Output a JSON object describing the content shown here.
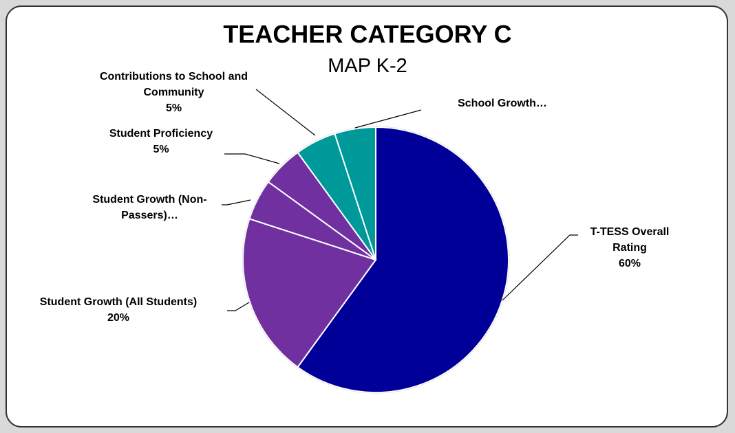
{
  "chart_data": {
    "type": "pie",
    "title": "TEACHER CATEGORY C",
    "subtitle": "MAP K-2",
    "categories": [
      "T-TESS Overall Rating",
      "Student Growth (All Students)",
      "Student Growth (Non-Passers)…",
      "Student Proficiency",
      "Contributions to School and Community",
      "School Growth…"
    ],
    "values": [
      60,
      20,
      5,
      5,
      5,
      5
    ],
    "value_labels": [
      "60%",
      "20%",
      null,
      "5%",
      "5%",
      null
    ],
    "colors": [
      "#000099",
      "#7030a0",
      "#7030a0",
      "#7030a0",
      "#009999",
      "#009999"
    ]
  }
}
